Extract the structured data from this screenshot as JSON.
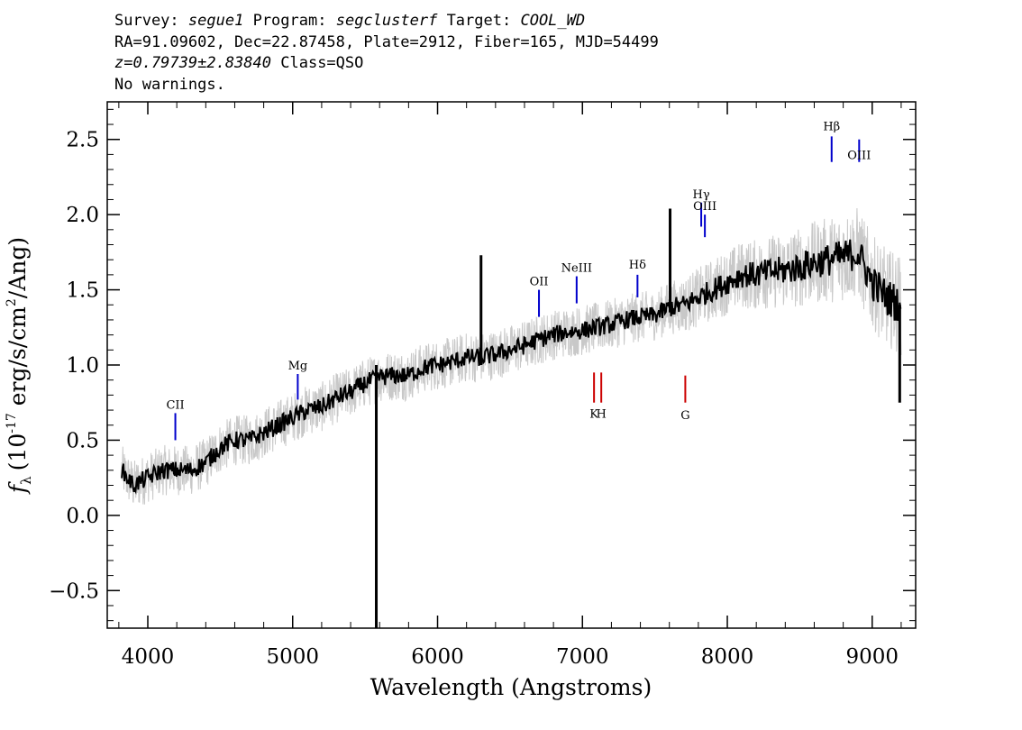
{
  "header": {
    "line1": {
      "survey_label": "Survey:",
      "survey": "segue1",
      "program_label": "Program:",
      "program": "segclusterf",
      "target_label": "Target:",
      "target": "COOL_WD"
    },
    "line2": "RA=91.09602, Dec=22.87458, Plate=2912, Fiber=165, MJD=54499",
    "line3": {
      "z": "z=0.79739±2.83840",
      "class": "Class=QSO"
    },
    "line4": "No warnings."
  },
  "chart_data": {
    "type": "line",
    "xlabel": "Wavelength (Angstroms)",
    "ylabel": "f_λ (10^-17 erg/s/cm^2/Ang)",
    "ylabel_parts": {
      "f": "f",
      "sub": "λ",
      "pre": "(10",
      "exp1": "-17",
      "mid": " erg/s/cm",
      "exp2": "2",
      "post": "/Ang)"
    },
    "xlim": [
      3720,
      9300
    ],
    "ylim": [
      -0.75,
      2.75
    ],
    "xticks": [
      4000,
      5000,
      6000,
      7000,
      8000,
      9000
    ],
    "xtick_labels": [
      "4000",
      "5000",
      "6000",
      "7000",
      "8000",
      "9000"
    ],
    "yticks": [
      -0.5,
      0.0,
      0.5,
      1.0,
      1.5,
      2.0,
      2.5
    ],
    "ytick_labels": [
      "−0.5",
      "0.0",
      "0.5",
      "1.0",
      "1.5",
      "2.0",
      "2.5"
    ],
    "series": [
      {
        "role": "noisy",
        "color": "#c8c8c8",
        "x": [
          3820,
          3900,
          4000,
          4100,
          4200,
          4300,
          4400,
          4500,
          4600,
          4700,
          4800,
          4900,
          5000,
          5100,
          5200,
          5300,
          5400,
          5500,
          5600,
          5700,
          5800,
          5900,
          6000,
          6100,
          6200,
          6300,
          6400,
          6500,
          6600,
          6700,
          6800,
          6900,
          7000,
          7100,
          7200,
          7300,
          7400,
          7500,
          7600,
          7700,
          7800,
          7900,
          8000,
          8100,
          8200,
          8300,
          8400,
          8500,
          8600,
          8700,
          8800,
          8900,
          9000,
          9100,
          9200
        ],
        "y": [
          0.3,
          0.2,
          0.25,
          0.3,
          0.3,
          0.3,
          0.35,
          0.45,
          0.5,
          0.5,
          0.55,
          0.6,
          0.65,
          0.7,
          0.72,
          0.78,
          0.82,
          0.88,
          0.92,
          0.93,
          0.93,
          0.98,
          1.0,
          1.02,
          1.05,
          1.05,
          1.07,
          1.1,
          1.13,
          1.17,
          1.2,
          1.22,
          1.23,
          1.25,
          1.27,
          1.3,
          1.32,
          1.33,
          1.38,
          1.4,
          1.45,
          1.5,
          1.55,
          1.6,
          1.6,
          1.62,
          1.63,
          1.65,
          1.68,
          1.7,
          1.72,
          1.75,
          1.55,
          1.45,
          1.4
        ]
      },
      {
        "role": "smoothed",
        "color": "#000000",
        "x": [
          3820,
          3900,
          4000,
          4100,
          4200,
          4300,
          4400,
          4500,
          4600,
          4700,
          4800,
          4900,
          5000,
          5100,
          5200,
          5300,
          5400,
          5500,
          5600,
          5700,
          5800,
          5900,
          6000,
          6100,
          6200,
          6300,
          6400,
          6500,
          6600,
          6700,
          6800,
          6900,
          7000,
          7100,
          7200,
          7300,
          7400,
          7500,
          7600,
          7700,
          7800,
          7900,
          8000,
          8100,
          8200,
          8300,
          8400,
          8500,
          8600,
          8700,
          8800,
          8900,
          9000,
          9100,
          9200
        ],
        "y": [
          0.3,
          0.2,
          0.25,
          0.3,
          0.3,
          0.3,
          0.35,
          0.45,
          0.5,
          0.5,
          0.55,
          0.6,
          0.65,
          0.7,
          0.72,
          0.78,
          0.82,
          0.88,
          0.92,
          0.93,
          0.93,
          0.98,
          1.0,
          1.02,
          1.05,
          1.05,
          1.07,
          1.1,
          1.13,
          1.17,
          1.2,
          1.22,
          1.23,
          1.25,
          1.27,
          1.3,
          1.32,
          1.33,
          1.38,
          1.4,
          1.45,
          1.5,
          1.55,
          1.6,
          1.6,
          1.62,
          1.63,
          1.65,
          1.68,
          1.7,
          1.72,
          1.75,
          1.55,
          1.45,
          1.4
        ]
      }
    ],
    "spikes": [
      {
        "x": 5577,
        "y0": 1.0,
        "y1": -0.75
      },
      {
        "x": 6300,
        "y0": 1.0,
        "y1": 1.73
      },
      {
        "x": 7605,
        "y0": 1.35,
        "y1": 2.04
      },
      {
        "x": 9190,
        "y0": 1.4,
        "y1": 0.75
      }
    ],
    "annotations": [
      {
        "label": "CII",
        "x": 4190,
        "y0": 0.5,
        "y1": 0.68,
        "label_y": 0.71,
        "color": "#0000cc"
      },
      {
        "label": "Mg",
        "x": 5035,
        "y0": 0.77,
        "y1": 0.94,
        "label_y": 0.97,
        "color": "#0000cc"
      },
      {
        "label": "OII",
        "x": 6700,
        "y0": 1.32,
        "y1": 1.5,
        "label_y": 1.53,
        "color": "#0000cc"
      },
      {
        "label": "NeIII",
        "x": 6960,
        "y0": 1.41,
        "y1": 1.59,
        "label_y": 1.62,
        "color": "#0000cc"
      },
      {
        "label": "Hδ",
        "x": 7380,
        "y0": 1.45,
        "y1": 1.6,
        "label_y": 1.64,
        "color": "#0000cc"
      },
      {
        "label": "Hγ",
        "x": 7820,
        "y0": 1.92,
        "y1": 2.08,
        "label_y": 2.11,
        "color": "#0000cc"
      },
      {
        "label": "OIII",
        "x": 7845,
        "y0": 1.85,
        "y1": 2.0,
        "label_y": 2.03,
        "color": "#0000cc"
      },
      {
        "label": "Hβ",
        "x": 8720,
        "y0": 2.35,
        "y1": 2.52,
        "label_y": 2.56,
        "color": "#0000cc"
      },
      {
        "label": "OIII",
        "x": 8910,
        "y0": 2.35,
        "y1": 2.5,
        "label_y": 2.37,
        "color": "#0000cc"
      },
      {
        "label": "K",
        "x": 7080,
        "y0": 0.75,
        "y1": 0.95,
        "label_y": 0.65,
        "color": "#cc0000"
      },
      {
        "label": "H",
        "x": 7130,
        "y0": 0.75,
        "y1": 0.95,
        "label_y": 0.65,
        "color": "#cc0000"
      },
      {
        "label": "G",
        "x": 7710,
        "y0": 0.75,
        "y1": 0.93,
        "label_y": 0.64,
        "color": "#cc0000"
      }
    ]
  }
}
